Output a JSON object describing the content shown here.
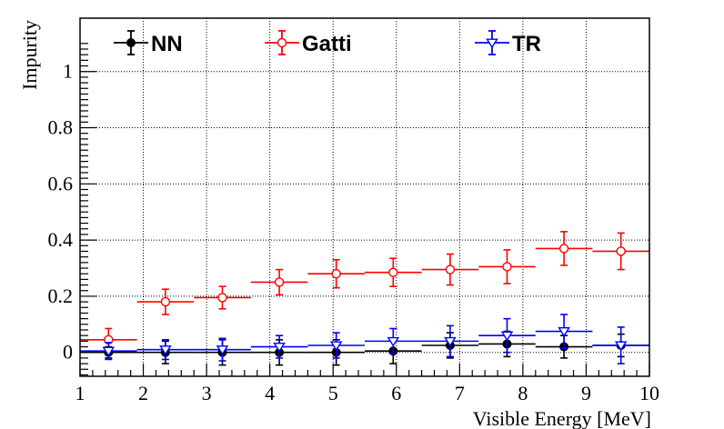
{
  "chart_data": {
    "type": "scatter",
    "title": "",
    "xlabel": "Visible Energy [MeV]",
    "ylabel": "Impurity",
    "xlim": [
      1,
      10
    ],
    "ylim": [
      -0.085,
      1.19
    ],
    "x_ticks": [
      1,
      2,
      3,
      4,
      5,
      6,
      7,
      8,
      9,
      10
    ],
    "x_tick_labels": [
      "1",
      "2",
      "3",
      "4",
      "5",
      "6",
      "7",
      "8",
      "9",
      "10"
    ],
    "y_ticks": [
      0,
      0.2,
      0.4,
      0.6,
      0.8,
      1
    ],
    "y_tick_labels": [
      "0",
      "0.2",
      "0.4",
      "0.6",
      "0.8",
      "1"
    ],
    "grid": true,
    "legend_position": "top",
    "x": [
      1.45,
      2.35,
      3.25,
      4.15,
      5.05,
      5.95,
      6.85,
      7.75,
      8.65,
      9.55
    ],
    "x_err": 0.45,
    "series": [
      {
        "name": "NN",
        "color": "#000000",
        "marker": "filled-circle",
        "values": [
          0.0,
          0.0,
          0.0,
          0.0,
          0.0,
          0.005,
          0.025,
          0.03,
          0.02,
          0.025
        ],
        "errors": [
          0.02,
          0.04,
          0.045,
          0.045,
          0.045,
          0.045,
          0.045,
          0.045,
          0.04,
          0.04
        ]
      },
      {
        "name": "Gatti",
        "color": "#ff0000",
        "marker": "open-circle",
        "values": [
          0.045,
          0.18,
          0.195,
          0.25,
          0.28,
          0.285,
          0.295,
          0.305,
          0.37,
          0.36
        ],
        "errors": [
          0.04,
          0.045,
          0.04,
          0.045,
          0.05,
          0.05,
          0.055,
          0.06,
          0.06,
          0.065
        ]
      },
      {
        "name": "TR",
        "color": "#0000ff",
        "marker": "open-triangle-down",
        "values": [
          0.005,
          0.01,
          0.01,
          0.02,
          0.025,
          0.04,
          0.04,
          0.06,
          0.075,
          0.025
        ],
        "errors": [
          0.03,
          0.035,
          0.04,
          0.04,
          0.045,
          0.045,
          0.055,
          0.06,
          0.06,
          0.065
        ]
      }
    ]
  }
}
